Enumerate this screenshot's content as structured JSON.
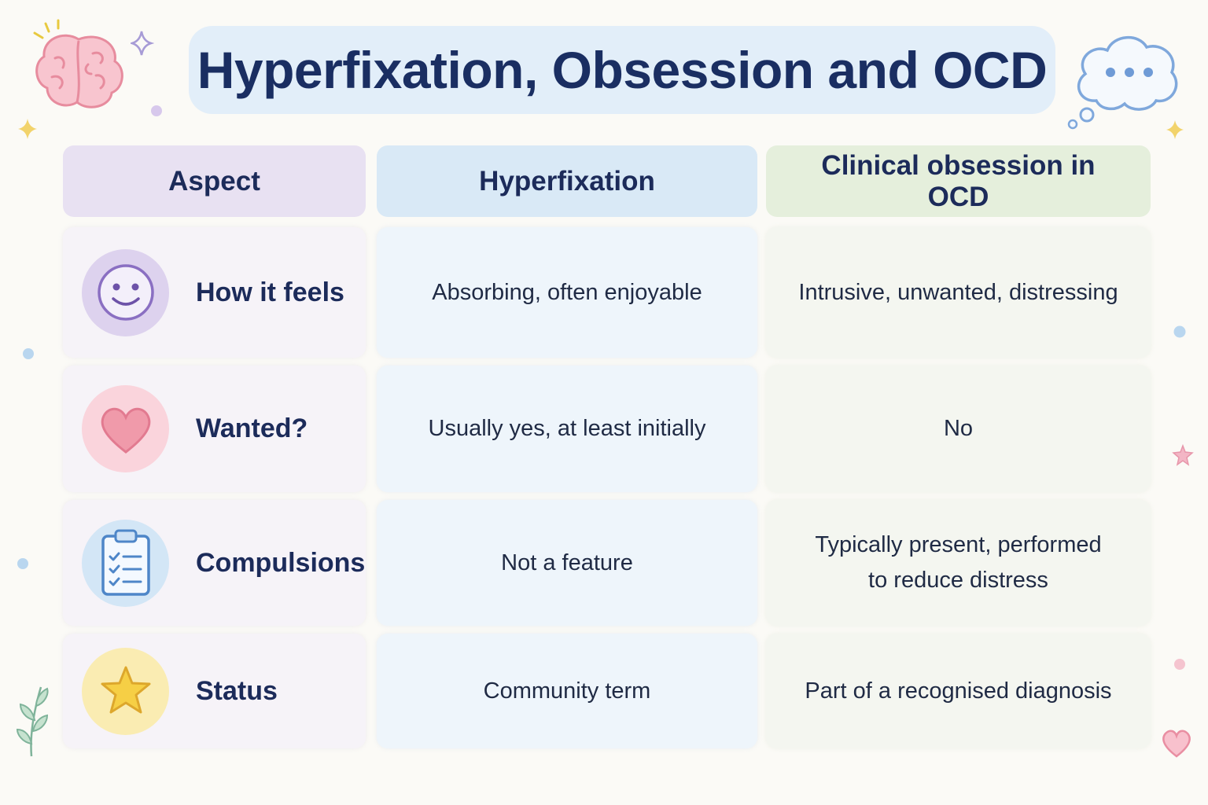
{
  "title": "Hyperfixation, Obsession and OCD",
  "headers": [
    "Aspect",
    "Hyperfixation",
    "Clinical obsession in OCD"
  ],
  "rows": [
    {
      "aspect": "How it feels",
      "icon": "smiley-face-icon",
      "hyperfixation": "Absorbing, often enjoyable",
      "ocd": "Intrusive, unwanted, distressing"
    },
    {
      "aspect": "Wanted?",
      "icon": "heart-icon",
      "hyperfixation": "Usually yes, at least initially",
      "ocd": "No"
    },
    {
      "aspect": "Compulsions",
      "icon": "clipboard-checklist-icon",
      "hyperfixation": "Not a feature",
      "ocd": "Typically present, performed to reduce distress"
    },
    {
      "aspect": "Status",
      "icon": "star-icon",
      "hyperfixation": "Community term",
      "ocd": "Part of a recognised diagnosis"
    }
  ],
  "colors": {
    "title_bg": "#e2eef9",
    "aspect_header": "#e8e1f2",
    "hyperfixation_header": "#d9e9f6",
    "ocd_header": "#e5efdc",
    "title_text": "#1a2e62"
  },
  "decorations": [
    "brain-icon",
    "thought-bubble-icon",
    "sparkle-icon",
    "leaf-sprig-icon",
    "small-heart-icon",
    "small-star-icon"
  ]
}
